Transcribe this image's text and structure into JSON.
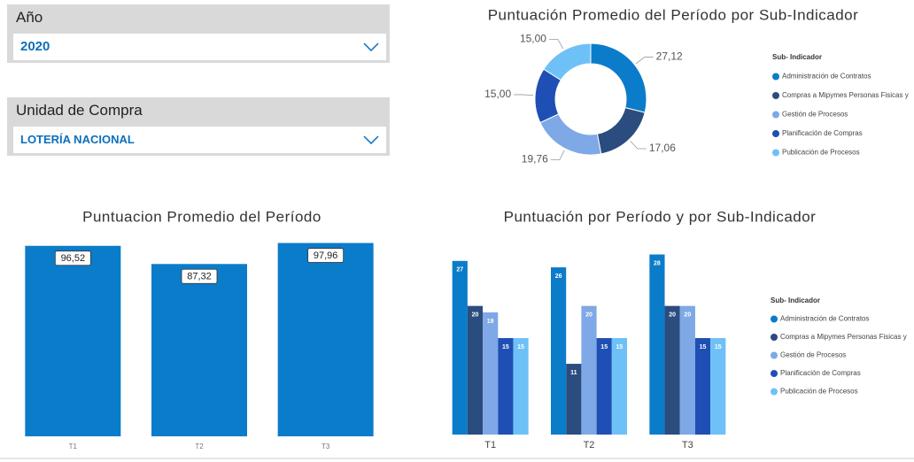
{
  "filters": [
    {
      "label": "Año",
      "value": "2020"
    },
    {
      "label": "Unidad de Compra",
      "value": "LOTERÍA NACIONAL"
    }
  ],
  "chart_data": [
    {
      "type": "donut",
      "title": "Puntuación Promedio del Período por Sub-Indicador",
      "legend_title": "Sub- Indicador",
      "categories": [
        "Administración de Contratos",
        "Compras a Mipymes Personas Fisicas y",
        "Gestión de Procesos",
        "Planificación de Compras",
        "Publicación de Procesos"
      ],
      "values": [
        27.12,
        17.06,
        19.76,
        15.0,
        15.0
      ],
      "value_labels": [
        "27,12",
        "17,06",
        "19,76",
        "15,00",
        "15,00"
      ],
      "colors": [
        "#0b7cc9",
        "#2b4c7e",
        "#7ea8e6",
        "#1f4fb5",
        "#6ec1f7"
      ]
    },
    {
      "type": "bar",
      "title": "Puntuacion Promedio del Período",
      "categories": [
        "T1",
        "T2",
        "T3"
      ],
      "values": [
        96.52,
        87.32,
        97.96
      ],
      "value_labels": [
        "96,52",
        "87,32",
        "97,96"
      ],
      "color": "#0b7cc9",
      "ylim": [
        0,
        100
      ]
    },
    {
      "type": "grouped_bar",
      "title": "Puntuación por Período y por Sub-Indicador",
      "legend_title": "Sub- Indicador",
      "categories": [
        "T1",
        "T2",
        "T3"
      ],
      "ylim": [
        0,
        30
      ],
      "series": [
        {
          "name": "Administración de Contratos",
          "color": "#0b7cc9",
          "values": [
            27,
            26,
            28
          ]
        },
        {
          "name": "Compras a Mipymes Personas Fisicas y",
          "color": "#2b4c7e",
          "values": [
            20,
            11,
            20
          ]
        },
        {
          "name": "Gestión de Procesos",
          "color": "#7ea8e6",
          "values": [
            19,
            20,
            20
          ]
        },
        {
          "name": "Planificación de Compras",
          "color": "#1f4fb5",
          "values": [
            15,
            15,
            15
          ]
        },
        {
          "name": "Publicación de Procesos",
          "color": "#6ec1f7",
          "values": [
            15,
            15,
            15
          ]
        }
      ]
    }
  ]
}
